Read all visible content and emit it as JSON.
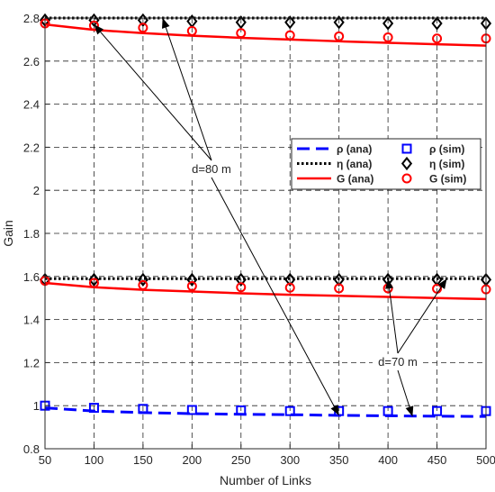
{
  "chart_data": {
    "type": "line",
    "xlabel": "Number of Links",
    "ylabel": "Gain",
    "xlim": [
      50,
      500
    ],
    "ylim": [
      0.8,
      2.8
    ],
    "x_ticks": [
      "50",
      "100",
      "150",
      "200",
      "250",
      "300",
      "350",
      "400",
      "450",
      "500"
    ],
    "y_ticks": [
      "0.8",
      "1",
      "1.2",
      "1.4",
      "1.6",
      "1.8",
      "2",
      "2.2",
      "2.4",
      "2.6",
      "2.8"
    ],
    "grid": true,
    "legend_position": "upper-right",
    "x": [
      50,
      100,
      150,
      200,
      250,
      300,
      350,
      400,
      450,
      500
    ],
    "series": [
      {
        "name": "ρ (ana)",
        "style": "dashed",
        "color": "#0000ff",
        "values": [
          0.99,
          0.975,
          0.968,
          0.963,
          0.96,
          0.958,
          0.955,
          0.953,
          0.951,
          0.95
        ]
      },
      {
        "name": "ρ (sim)",
        "style": "square",
        "color": "#0000ff",
        "values": [
          1.0,
          0.99,
          0.985,
          0.98,
          0.978,
          0.975,
          0.975,
          0.975,
          0.975,
          0.975
        ]
      },
      {
        "name": "η (ana) d=80 m",
        "style": "dotted",
        "color": "#000000",
        "values": [
          2.8,
          2.8,
          2.8,
          2.8,
          2.8,
          2.8,
          2.8,
          2.8,
          2.8,
          2.8
        ]
      },
      {
        "name": "η (sim) d=80 m",
        "style": "diamond",
        "color": "#000000",
        "values": [
          2.79,
          2.79,
          2.79,
          2.785,
          2.78,
          2.78,
          2.78,
          2.775,
          2.775,
          2.775
        ]
      },
      {
        "name": "G (ana) d=80 m",
        "style": "solid",
        "color": "#ff0000",
        "values": [
          2.77,
          2.745,
          2.73,
          2.718,
          2.708,
          2.7,
          2.692,
          2.685,
          2.678,
          2.672
        ]
      },
      {
        "name": "G (sim) d=80 m",
        "style": "circle",
        "color": "#ff0000",
        "values": [
          2.775,
          2.765,
          2.755,
          2.74,
          2.73,
          2.72,
          2.715,
          2.71,
          2.705,
          2.705
        ]
      },
      {
        "name": "η (ana) d=70 m",
        "style": "dotted",
        "color": "#000000",
        "values": [
          1.59,
          1.59,
          1.59,
          1.59,
          1.59,
          1.59,
          1.59,
          1.59,
          1.59,
          1.59
        ]
      },
      {
        "name": "η (sim) d=70 m",
        "style": "diamond",
        "color": "#000000",
        "values": [
          1.585,
          1.585,
          1.585,
          1.585,
          1.585,
          1.585,
          1.585,
          1.585,
          1.585,
          1.585
        ]
      },
      {
        "name": "G (ana) d=70 m",
        "style": "solid",
        "color": "#ff0000",
        "values": [
          1.57,
          1.55,
          1.538,
          1.53,
          1.522,
          1.515,
          1.51,
          1.505,
          1.5,
          1.495
        ]
      },
      {
        "name": "G (sim) d=70 m",
        "style": "circle",
        "color": "#ff0000",
        "values": [
          1.58,
          1.57,
          1.56,
          1.555,
          1.55,
          1.548,
          1.545,
          1.545,
          1.543,
          1.54
        ]
      }
    ],
    "legend": [
      {
        "text": "ρ (ana)",
        "style": "dashed",
        "color": "#0000ff"
      },
      {
        "text": "ρ (sim)",
        "style": "square",
        "color": "#0000ff"
      },
      {
        "text": "η (ana)",
        "style": "dotted",
        "color": "#000000"
      },
      {
        "text": "η (sim)",
        "style": "diamond",
        "color": "#000000"
      },
      {
        "text": "G (ana)",
        "style": "solid",
        "color": "#ff0000"
      },
      {
        "text": "G (sim)",
        "style": "circle",
        "color": "#ff0000"
      }
    ],
    "annotations": [
      {
        "text": "d=80 m",
        "targets": [
          [
            100,
            2.77
          ],
          [
            170,
            2.8
          ],
          [
            350,
            0.955
          ]
        ]
      },
      {
        "text": "d=70 m",
        "targets": [
          [
            400,
            1.59
          ],
          [
            460,
            1.59
          ],
          [
            425,
            0.95
          ]
        ]
      }
    ]
  }
}
